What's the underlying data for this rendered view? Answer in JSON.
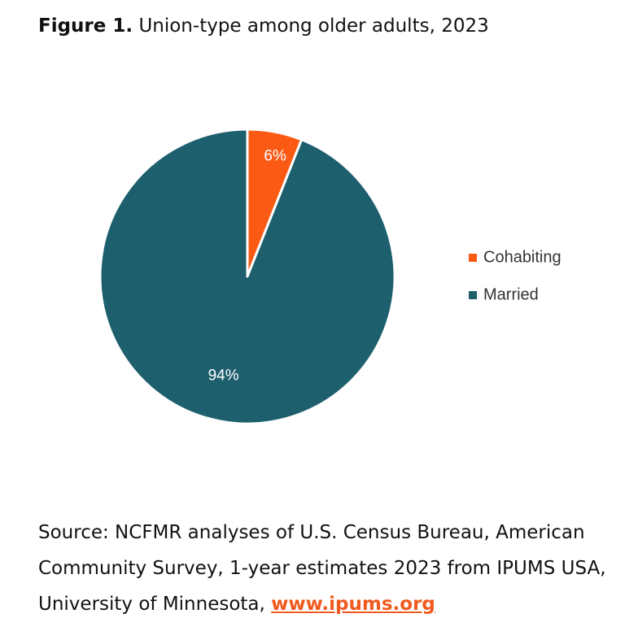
{
  "title": {
    "figure_label": "Figure 1.",
    "text": "Union-type among older adults, 2023"
  },
  "chart_data": {
    "type": "pie",
    "categories": [
      "Cohabiting",
      "Married"
    ],
    "values": [
      6,
      94
    ],
    "labels": [
      "6%",
      "94%"
    ],
    "colors": [
      "#fa5a14",
      "#1e5f6e"
    ],
    "legend_position": "right"
  },
  "source": {
    "text": "Source: NCFMR analyses of U.S. Census Bureau, American Community Survey, 1-year estimates 2023 from IPUMS USA, University of Minnesota, ",
    "link_text": "www.ipums.org"
  }
}
